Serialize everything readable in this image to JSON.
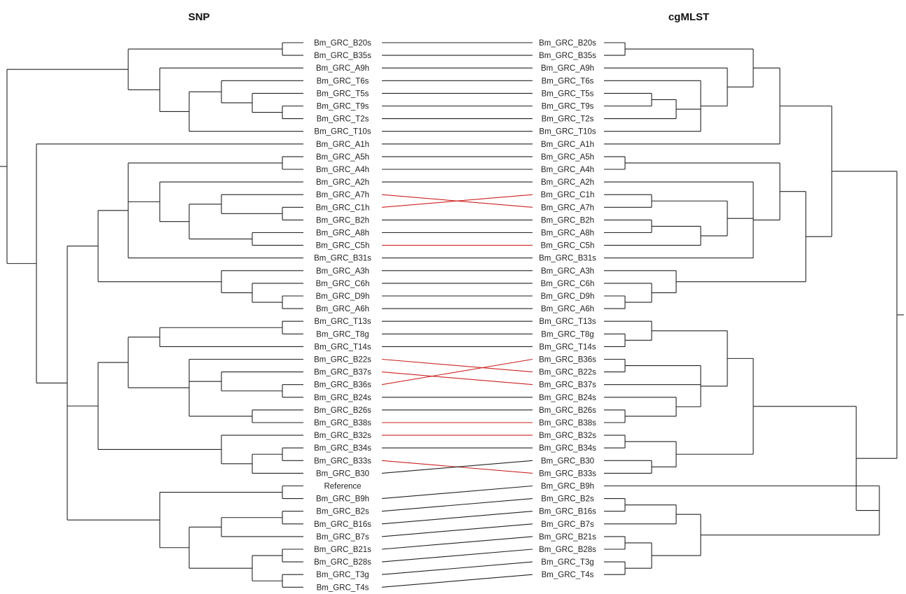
{
  "titles": {
    "left": "SNP",
    "right": "cgMLST"
  },
  "colors": {
    "consistent_link": "#222222",
    "discordant_link": "#cc2222",
    "tree_line": "#222222"
  },
  "left_leaves": [
    "Bm_GRC_B20s",
    "Bm_GRC_B35s",
    "Bm_GRC_A9h",
    "Bm_GRC_T6s",
    "Bm_GRC_T5s",
    "Bm_GRC_T9s",
    "Bm_GRC_T2s",
    "Bm_GRC_T10s",
    "Bm_GRC_A1h",
    "Bm_GRC_A5h",
    "Bm_GRC_A4h",
    "Bm_GRC_A2h",
    "Bm_GRC_A7h",
    "Bm_GRC_C1h",
    "Bm_GRC_B2h",
    "Bm_GRC_A8h",
    "Bm_GRC_C5h",
    "Bm_GRC_B31s",
    "Bm_GRC_A3h",
    "Bm_GRC_C6h",
    "Bm_GRC_D9h",
    "Bm_GRC_A6h",
    "Bm_GRC_T13s",
    "Bm_GRC_T8g",
    "Bm_GRC_T14s",
    "Bm_GRC_B22s",
    "Bm_GRC_B37s",
    "Bm_GRC_B36s",
    "Bm_GRC_B24s",
    "Bm_GRC_B26s",
    "Bm_GRC_B38s",
    "Bm_GRC_B32s",
    "Bm_GRC_B34s",
    "Bm_GRC_B33s",
    "Bm_GRC_B30",
    "Reference",
    "Bm_GRC_B9h",
    "Bm_GRC_B2s",
    "Bm_GRC_B16s",
    "Bm_GRC_B7s",
    "Bm_GRC_B21s",
    "Bm_GRC_B28s",
    "Bm_GRC_T3g",
    "Bm_GRC_T4s"
  ],
  "right_leaves": [
    "Bm_GRC_B20s",
    "Bm_GRC_B35s",
    "Bm_GRC_A9h",
    "Bm_GRC_T6s",
    "Bm_GRC_T5s",
    "Bm_GRC_T9s",
    "Bm_GRC_T2s",
    "Bm_GRC_T10s",
    "Bm_GRC_A1h",
    "Bm_GRC_A5h",
    "Bm_GRC_A4h",
    "Bm_GRC_A2h",
    "Bm_GRC_C1h",
    "Bm_GRC_A7h",
    "Bm_GRC_B2h",
    "Bm_GRC_A8h",
    "Bm_GRC_C5h",
    "Bm_GRC_B31s",
    "Bm_GRC_A3h",
    "Bm_GRC_C6h",
    "Bm_GRC_D9h",
    "Bm_GRC_A6h",
    "Bm_GRC_T13s",
    "Bm_GRC_T8g",
    "Bm_GRC_T14s",
    "Bm_GRC_B36s",
    "Bm_GRC_B22s",
    "Bm_GRC_B37s",
    "Bm_GRC_B24s",
    "Bm_GRC_B26s",
    "Bm_GRC_B38s",
    "Bm_GRC_B32s",
    "Bm_GRC_B34s",
    "Bm_GRC_B30",
    "Bm_GRC_B33s",
    "Bm_GRC_B9h",
    "Bm_GRC_B2s",
    "Bm_GRC_B16s",
    "Bm_GRC_B7s",
    "Bm_GRC_B21s",
    "Bm_GRC_B28s",
    "Bm_GRC_T3g",
    "Bm_GRC_T4s"
  ],
  "discordant_taxa": [
    "Bm_GRC_A7h",
    "Bm_GRC_C1h",
    "Bm_GRC_C5h",
    "Bm_GRC_B22s",
    "Bm_GRC_B37s",
    "Bm_GRC_B36s",
    "Bm_GRC_B38s",
    "Bm_GRC_B32s",
    "Bm_GRC_B33s"
  ]
}
